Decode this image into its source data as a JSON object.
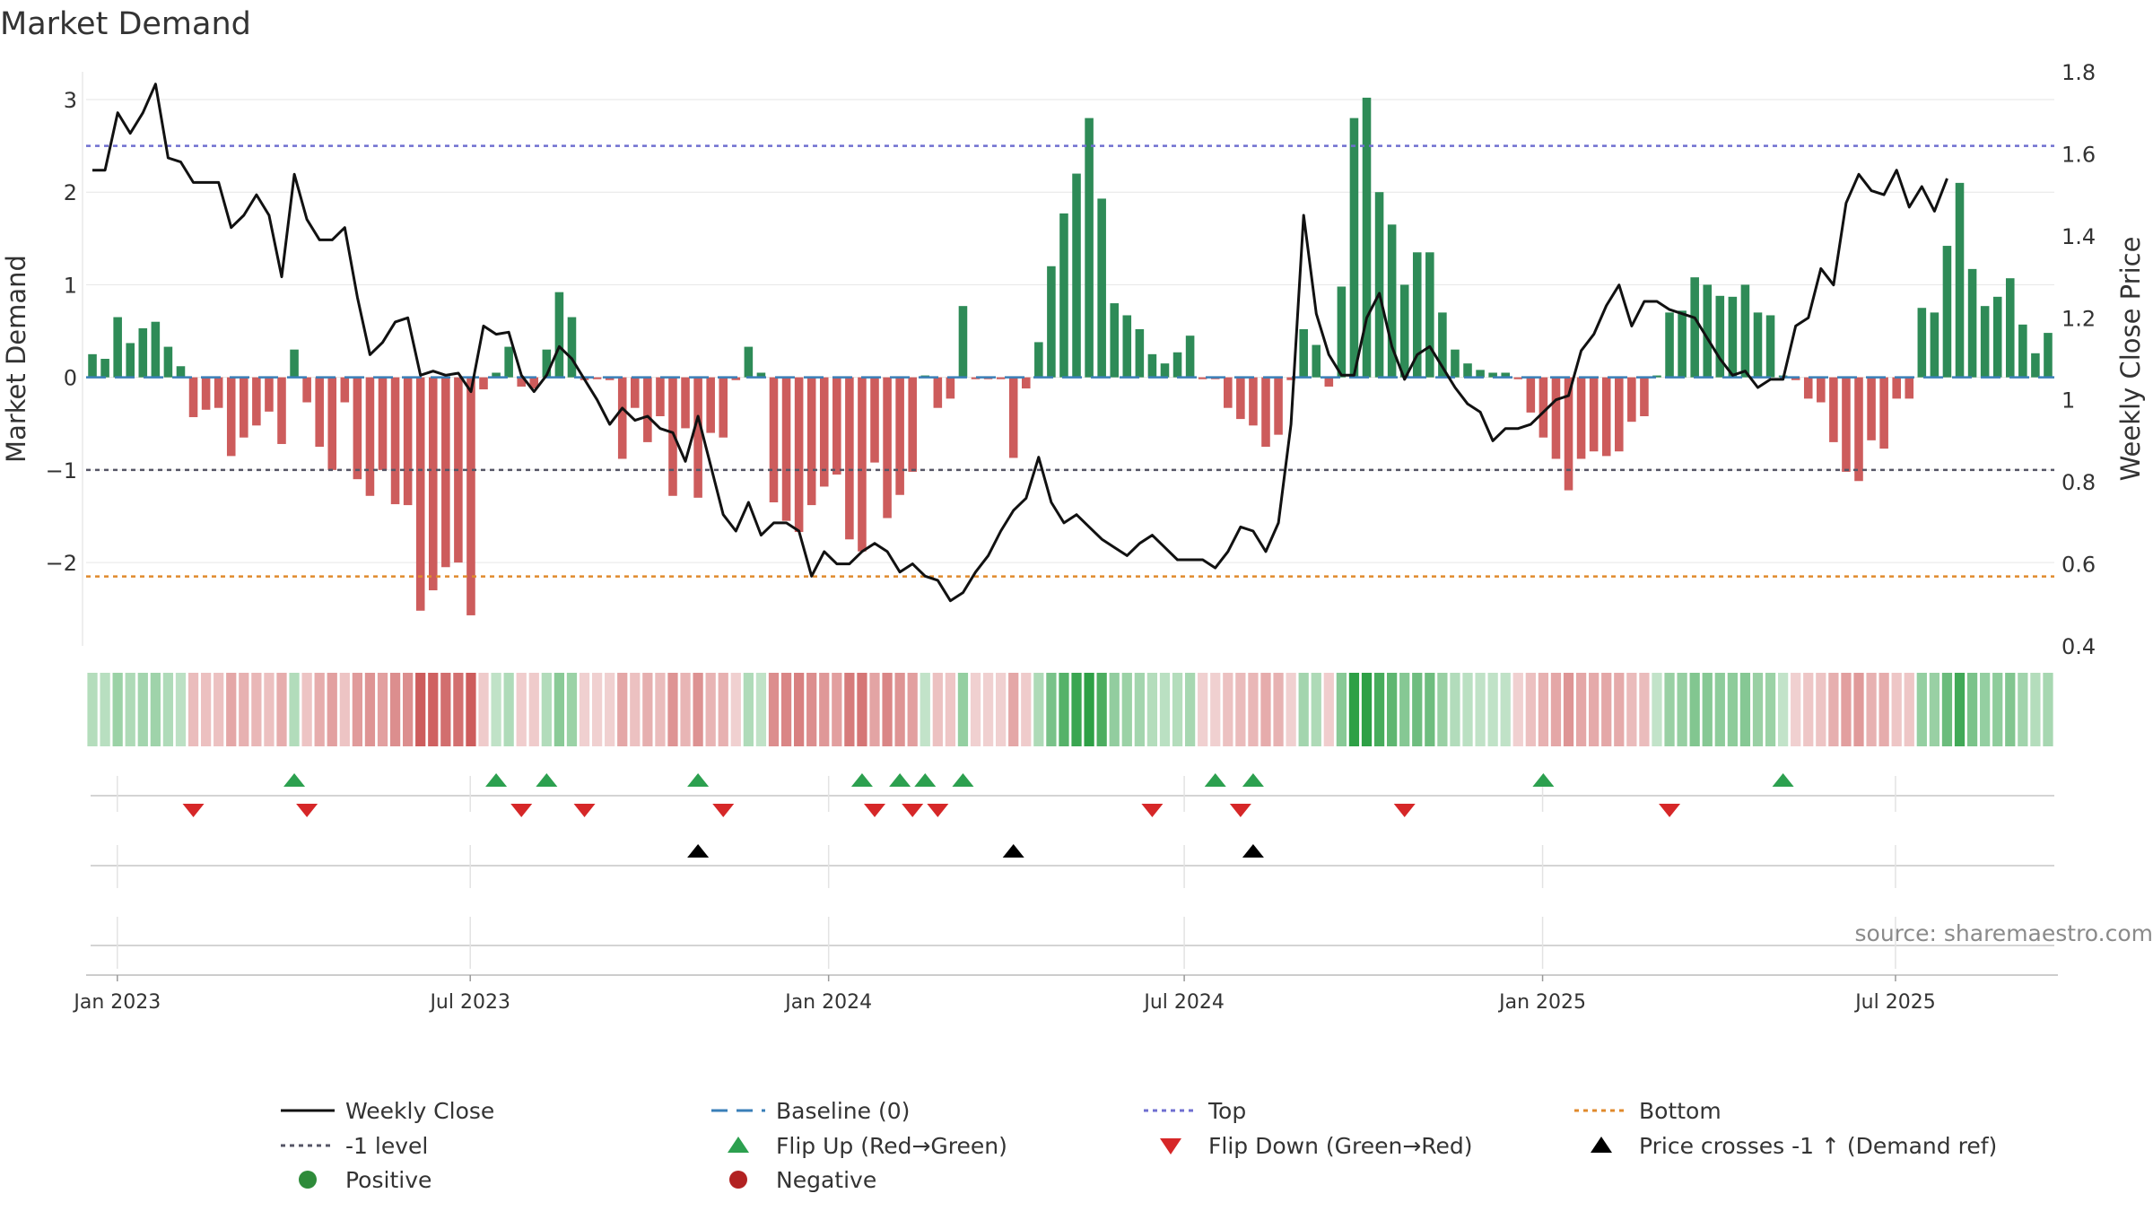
{
  "chart_data": {
    "type": "bar",
    "title": "Market Demand",
    "ylabel_left": "Market Demand",
    "ylabel_right": "Weekly Close Price",
    "source": "source: sharemaestro.com",
    "left_axis": {
      "ylim": [
        -2.9,
        3.3
      ],
      "ticks": [
        3,
        2,
        1,
        0,
        -1,
        -2
      ],
      "tick_labels": [
        "3",
        "2",
        "1",
        "0",
        "−1",
        "−2"
      ]
    },
    "right_axis": {
      "ylim": [
        0.4,
        1.8
      ],
      "ticks": [
        1.8,
        1.6,
        1.4,
        1.2,
        1.0,
        0.8,
        0.6,
        0.4
      ],
      "tick_labels": [
        "1.8",
        "1.6",
        "1.4",
        "1.2",
        "1",
        "0.8",
        "0.6",
        "0.4"
      ]
    },
    "x_axis": {
      "start_week": 0,
      "end_week": 145,
      "ticks": [
        2.3,
        28.3,
        54.7,
        80.9,
        107.3,
        133.3
      ],
      "tick_labels": [
        "Jan 2023",
        "Jul 2023",
        "Jan 2024",
        "Jul 2024",
        "Jan 2025",
        "Jul 2025"
      ]
    },
    "reference_lines": {
      "baseline": 0,
      "top": 2.5,
      "minus_one": -1,
      "bottom": -2.15
    },
    "demand": [
      0.25,
      0.2,
      0.65,
      0.37,
      0.53,
      0.6,
      0.33,
      0.12,
      -0.43,
      -0.35,
      -0.33,
      -0.85,
      -0.65,
      -0.52,
      -0.37,
      -0.72,
      0.3,
      -0.27,
      -0.75,
      -1.0,
      -0.27,
      -1.1,
      -1.28,
      -1.0,
      -1.37,
      -1.38,
      -2.52,
      -2.3,
      -2.05,
      -2.0,
      -2.57,
      -0.13,
      0.05,
      0.33,
      -0.1,
      -0.12,
      0.3,
      0.92,
      0.65,
      -0.03,
      -0.02,
      -0.03,
      -0.88,
      -0.33,
      -0.7,
      -0.42,
      -1.28,
      -0.55,
      -1.3,
      -0.6,
      -0.65,
      -0.03,
      0.33,
      0.05,
      -1.35,
      -1.55,
      -1.67,
      -1.38,
      -1.18,
      -1.05,
      -1.75,
      -1.88,
      -0.92,
      -1.52,
      -1.27,
      -1.02,
      0.02,
      -0.33,
      -0.23,
      0.77,
      -0.02,
      -0.02,
      -0.02,
      -0.87,
      -0.12,
      0.38,
      1.2,
      1.77,
      2.2,
      2.8,
      1.93,
      0.8,
      0.67,
      0.52,
      0.25,
      0.15,
      0.27,
      0.45,
      -0.02,
      -0.02,
      -0.33,
      -0.45,
      -0.52,
      -0.75,
      -0.62,
      -0.03,
      0.52,
      0.35,
      -0.1,
      0.98,
      2.8,
      3.02,
      2.0,
      1.65,
      1.0,
      1.35,
      1.35,
      0.7,
      0.3,
      0.15,
      0.08,
      0.05,
      0.05,
      -0.02,
      -0.38,
      -0.65,
      -0.88,
      -1.22,
      -0.88,
      -0.8,
      -0.85,
      -0.8,
      -0.48,
      -0.42,
      0.02,
      0.7,
      0.72,
      1.08,
      1.0,
      0.88,
      0.87,
      1.0,
      0.7,
      0.67,
      0.02,
      -0.03,
      -0.23,
      -0.27,
      -0.7,
      -1.02,
      -1.12,
      -0.68,
      -0.77,
      -0.23,
      -0.23,
      0.75,
      0.7,
      1.42,
      2.1,
      1.17,
      0.77,
      0.87,
      1.07,
      0.57,
      0.26,
      0.48
    ],
    "weekly_close": [
      1.56,
      1.56,
      1.7,
      1.65,
      1.7,
      1.77,
      1.59,
      1.58,
      1.53,
      1.53,
      1.53,
      1.42,
      1.45,
      1.5,
      1.45,
      1.3,
      1.55,
      1.44,
      1.39,
      1.39,
      1.42,
      1.25,
      1.11,
      1.14,
      1.19,
      1.2,
      1.06,
      1.07,
      1.06,
      1.065,
      1.02,
      1.18,
      1.16,
      1.165,
      1.06,
      1.02,
      1.06,
      1.13,
      1.1,
      1.05,
      1.0,
      0.94,
      0.98,
      0.95,
      0.96,
      0.93,
      0.92,
      0.85,
      0.96,
      0.84,
      0.72,
      0.68,
      0.75,
      0.67,
      0.7,
      0.7,
      0.68,
      0.57,
      0.63,
      0.6,
      0.6,
      0.63,
      0.65,
      0.63,
      0.58,
      0.6,
      0.57,
      0.56,
      0.51,
      0.53,
      0.58,
      0.62,
      0.68,
      0.73,
      0.76,
      0.86,
      0.75,
      0.7,
      0.72,
      0.69,
      0.66,
      0.64,
      0.62,
      0.65,
      0.67,
      0.64,
      0.61,
      0.61,
      0.61,
      0.59,
      0.63,
      0.69,
      0.68,
      0.63,
      0.7,
      0.94,
      1.45,
      1.21,
      1.11,
      1.06,
      1.06,
      1.2,
      1.26,
      1.13,
      1.05,
      1.11,
      1.13,
      1.08,
      1.03,
      0.99,
      0.97,
      0.9,
      0.93,
      0.93,
      0.94,
      0.97,
      1.0,
      1.01,
      1.12,
      1.16,
      1.23,
      1.28,
      1.18,
      1.24,
      1.24,
      1.22,
      1.21,
      1.2,
      1.15,
      1.1,
      1.06,
      1.07,
      1.03,
      1.05,
      1.05,
      1.18,
      1.2,
      1.32,
      1.28,
      1.48,
      1.55,
      1.51,
      1.5,
      1.56,
      1.47,
      1.52,
      1.46,
      1.54
    ],
    "flip_up_weeks": [
      16,
      32,
      36,
      48,
      61,
      64,
      66,
      69,
      89,
      92,
      115,
      134
    ],
    "flip_down_weeks": [
      8,
      17,
      34,
      39,
      50,
      62,
      65,
      67,
      84,
      91,
      104,
      125
    ],
    "price_cross_weeks": [
      48,
      73,
      92
    ],
    "legend": [
      {
        "label": "Weekly Close",
        "marker": "line-solid",
        "color": "#111111"
      },
      {
        "label": "Baseline (0)",
        "marker": "line-dashed",
        "color": "#3a7fb8"
      },
      {
        "label": "Top",
        "marker": "line-dotted",
        "color": "#6f6fd0"
      },
      {
        "label": "Bottom",
        "marker": "line-dotted",
        "color": "#e08a2c"
      },
      {
        "label": "-1 level",
        "marker": "line-dotted",
        "color": "#555566"
      },
      {
        "label": "Flip Up (Red→Green)",
        "marker": "triangle-up",
        "color": "#2ca04f"
      },
      {
        "label": "Flip Down (Green→Red)",
        "marker": "triangle-down",
        "color": "#d62728"
      },
      {
        "label": "Price crosses -1 ↑ (Demand ref)",
        "marker": "triangle-up",
        "color": "#000000"
      },
      {
        "label": "Positive",
        "marker": "circle",
        "color": "#2e8b3a"
      },
      {
        "label": "Negative",
        "marker": "circle",
        "color": "#b22222"
      }
    ],
    "colors": {
      "positive_bar": "#2e8b57",
      "negative_bar": "#cd5c5c",
      "price_line": "#111111",
      "baseline": "#3a7fb8",
      "top_line": "#6f6fd0",
      "bottom_line": "#e08a2c",
      "minus_one_line": "#555566",
      "strip_green_rgb": [
        46,
        160,
        70
      ],
      "strip_red_rgb": [
        205,
        92,
        92
      ]
    }
  }
}
